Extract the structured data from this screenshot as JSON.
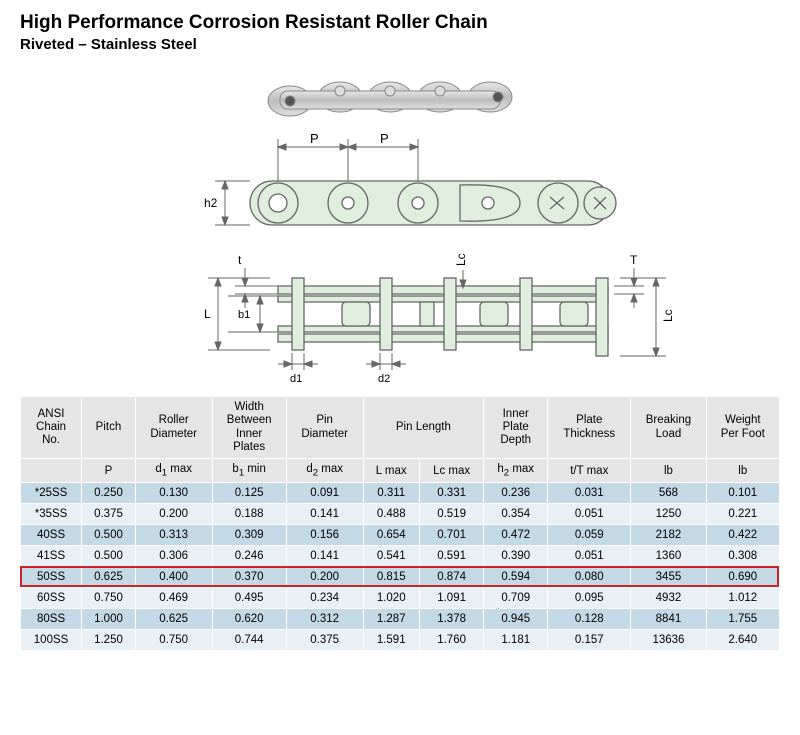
{
  "title": "High Performance Corrosion Resistant Roller Chain",
  "subtitle": "Riveted – Stainless Steel",
  "diagram_labels": {
    "P1": "P",
    "P2": "P",
    "h2": "h2",
    "t": "t",
    "L": "L",
    "b1": "b1",
    "d1": "d1",
    "d2": "d2",
    "Lc_left": "Lc",
    "T": "T",
    "Lc_right": "Lc"
  },
  "colors": {
    "header_bg": "#e5e5e5",
    "row_even": "#c3d9e5",
    "row_odd": "#e8eff5",
    "highlight_border": "#d02028",
    "diagram_fill": "#dfeedd",
    "diagram_line": "#666666"
  },
  "table": {
    "columns_top": [
      "ANSI Chain No.",
      "Pitch",
      "Roller Diameter",
      "Width Between Inner Plates",
      "Pin Diameter",
      "Pin Length",
      "Inner Plate Depth",
      "Plate Thickness",
      "Breaking Load",
      "Weight Per Foot"
    ],
    "pin_length_colspan": 2,
    "columns_sub": [
      "",
      "P",
      "d1 max",
      "b1 min",
      "d2 max",
      "L max",
      "Lc max",
      "h2 max",
      "t/T max",
      "lb",
      "lb"
    ],
    "rows": [
      [
        "*25SS",
        "0.250",
        "0.130",
        "0.125",
        "0.091",
        "0.311",
        "0.331",
        "0.236",
        "0.031",
        "568",
        "0.101"
      ],
      [
        "*35SS",
        "0.375",
        "0.200",
        "0.188",
        "0.141",
        "0.488",
        "0.519",
        "0.354",
        "0.051",
        "1250",
        "0.221"
      ],
      [
        "40SS",
        "0.500",
        "0.313",
        "0.309",
        "0.156",
        "0.654",
        "0.701",
        "0.472",
        "0.059",
        "2182",
        "0.422"
      ],
      [
        "41SS",
        "0.500",
        "0.306",
        "0.246",
        "0.141",
        "0.541",
        "0.591",
        "0.390",
        "0.051",
        "1360",
        "0.308"
      ],
      [
        "50SS",
        "0.625",
        "0.400",
        "0.370",
        "0.200",
        "0.815",
        "0.874",
        "0.594",
        "0.080",
        "3455",
        "0.690"
      ],
      [
        "60SS",
        "0.750",
        "0.469",
        "0.495",
        "0.234",
        "1.020",
        "1.091",
        "0.709",
        "0.095",
        "4932",
        "1.012"
      ],
      [
        "80SS",
        "1.000",
        "0.625",
        "0.620",
        "0.312",
        "1.287",
        "1.378",
        "0.945",
        "0.128",
        "8841",
        "1.755"
      ],
      [
        "100SS",
        "1.250",
        "0.750",
        "0.744",
        "0.375",
        "1.591",
        "1.760",
        "1.181",
        "0.157",
        "13636",
        "2.640"
      ]
    ],
    "highlight_row_index": 4
  }
}
